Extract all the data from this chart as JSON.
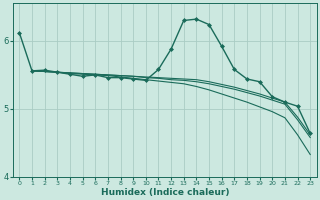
{
  "xlabel": "Humidex (Indice chaleur)",
  "bg_color": "#cce8e0",
  "grid_color": "#aaccc4",
  "line_color": "#1a6b5a",
  "xlim": [
    -0.5,
    23.5
  ],
  "ylim": [
    4.0,
    6.55
  ],
  "yticks": [
    4,
    5,
    6
  ],
  "xticks": [
    0,
    1,
    2,
    3,
    4,
    5,
    6,
    7,
    8,
    9,
    10,
    11,
    12,
    13,
    14,
    15,
    16,
    17,
    18,
    19,
    20,
    21,
    22,
    23
  ],
  "series": [
    {
      "x": [
        0,
        1,
        2,
        3,
        4,
        5,
        6,
        7,
        8,
        9,
        10,
        11,
        12,
        13,
        14,
        15,
        16,
        17,
        18,
        19,
        20,
        21,
        22,
        23
      ],
      "y": [
        6.12,
        5.56,
        5.57,
        5.54,
        5.51,
        5.48,
        5.5,
        5.46,
        5.46,
        5.44,
        5.42,
        5.58,
        5.88,
        6.3,
        6.32,
        6.24,
        5.92,
        5.58,
        5.44,
        5.4,
        5.18,
        5.1,
        5.04,
        4.64
      ],
      "marker": "D",
      "markersize": 2.0,
      "linewidth": 1.0
    },
    {
      "x": [
        1,
        2,
        3,
        4,
        5,
        6,
        7,
        8,
        9,
        10,
        11,
        12,
        13,
        14,
        15,
        16,
        17,
        18,
        19,
        20,
        21,
        22,
        23
      ],
      "y": [
        5.56,
        5.55,
        5.54,
        5.53,
        5.52,
        5.51,
        5.5,
        5.49,
        5.48,
        5.47,
        5.46,
        5.45,
        5.44,
        5.43,
        5.4,
        5.36,
        5.32,
        5.27,
        5.22,
        5.16,
        5.1,
        4.88,
        4.62
      ],
      "marker": null,
      "markersize": 0,
      "linewidth": 0.8
    },
    {
      "x": [
        1,
        2,
        3,
        4,
        5,
        6,
        7,
        8,
        9,
        10,
        11,
        12,
        13,
        14,
        15,
        16,
        17,
        18,
        19,
        20,
        21,
        22,
        23
      ],
      "y": [
        5.56,
        5.55,
        5.54,
        5.53,
        5.52,
        5.51,
        5.5,
        5.49,
        5.48,
        5.46,
        5.45,
        5.43,
        5.42,
        5.4,
        5.37,
        5.33,
        5.29,
        5.24,
        5.19,
        5.13,
        5.07,
        4.84,
        4.58
      ],
      "marker": null,
      "markersize": 0,
      "linewidth": 0.8
    },
    {
      "x": [
        1,
        2,
        3,
        4,
        5,
        6,
        7,
        8,
        9,
        10,
        11,
        12,
        13,
        14,
        15,
        16,
        17,
        18,
        19,
        20,
        21,
        22,
        23
      ],
      "y": [
        5.56,
        5.55,
        5.54,
        5.52,
        5.51,
        5.5,
        5.49,
        5.47,
        5.45,
        5.43,
        5.41,
        5.39,
        5.37,
        5.33,
        5.28,
        5.22,
        5.16,
        5.1,
        5.03,
        4.96,
        4.87,
        4.62,
        4.33
      ],
      "marker": null,
      "markersize": 0,
      "linewidth": 0.8
    }
  ]
}
